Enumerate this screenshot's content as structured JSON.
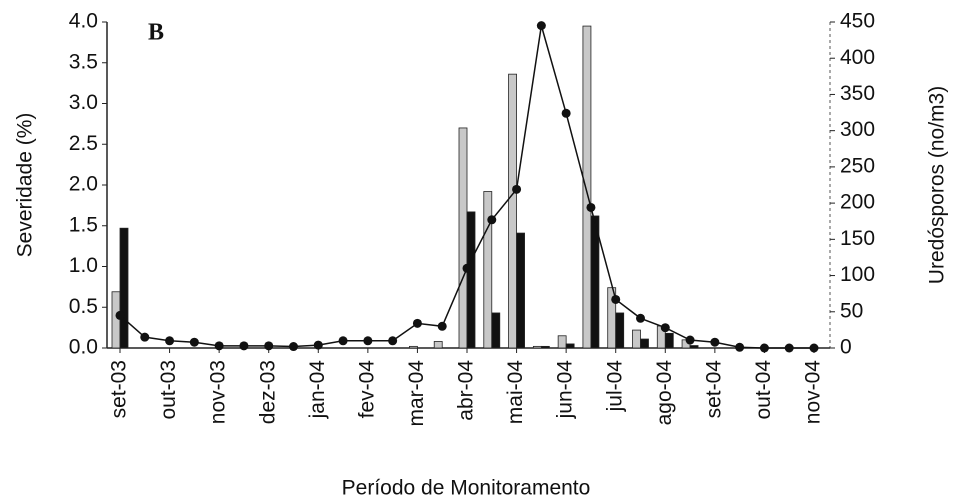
{
  "chart_data": {
    "type": "bar_line",
    "annotation": "B",
    "ylabel": "Severidade (%)",
    "y2label": "Uredósporos (no/m3)",
    "xlabel": "Período de Monitoramento",
    "categories": [
      "set-03",
      null,
      "out-03",
      null,
      "nov-03",
      null,
      "dez-03",
      null,
      "jan-04",
      null,
      "fev-04",
      null,
      "mar-04",
      null,
      "abr-04",
      null,
      "mai-04",
      null,
      "jun-04",
      null,
      "jul-04",
      null,
      "ago-04",
      null,
      "set-04",
      null,
      "out-04",
      null,
      "nov-04"
    ],
    "series": [
      {
        "type": "bar",
        "color": "#c8c8c8",
        "values": [
          0.69,
          0,
          0,
          0,
          0,
          0,
          0,
          0,
          0,
          0,
          0,
          0,
          0.02,
          0.08,
          2.7,
          1.92,
          3.36,
          0.02,
          0.15,
          3.95,
          0.74,
          0.22,
          0.27,
          0.1,
          0,
          0,
          0,
          0,
          0
        ]
      },
      {
        "type": "bar",
        "color": "#111111",
        "values": [
          1.47,
          0,
          0,
          0,
          0,
          0,
          0,
          0,
          0,
          0,
          0,
          0,
          0,
          0,
          1.67,
          0.43,
          1.41,
          0.02,
          0.05,
          1.62,
          0.43,
          0.11,
          0.18,
          0.03,
          0,
          0,
          0,
          0,
          0
        ]
      },
      {
        "type": "line",
        "axis": "y2",
        "color": "#111111",
        "values": [
          45,
          15,
          10,
          8,
          3,
          3,
          3,
          2,
          4,
          10,
          10,
          10,
          34,
          30,
          110,
          177,
          219,
          445,
          324,
          194,
          67,
          41,
          28,
          11,
          8,
          1,
          0,
          0,
          0
        ]
      }
    ],
    "ylim": [
      0,
      4
    ],
    "yticks": [
      {
        "value": 0,
        "label": "0.0"
      },
      0.5,
      {
        "value": 1,
        "label": "1.0"
      },
      1.5,
      {
        "value": 2,
        "label": "2.0"
      },
      2.5,
      {
        "value": 3,
        "label": "3.0"
      },
      3.5,
      {
        "value": 4,
        "label": "4.0"
      }
    ],
    "y2lim": [
      0,
      450
    ],
    "y2ticks": [
      0,
      50,
      100,
      150,
      200,
      250,
      300,
      350,
      400,
      450
    ]
  }
}
